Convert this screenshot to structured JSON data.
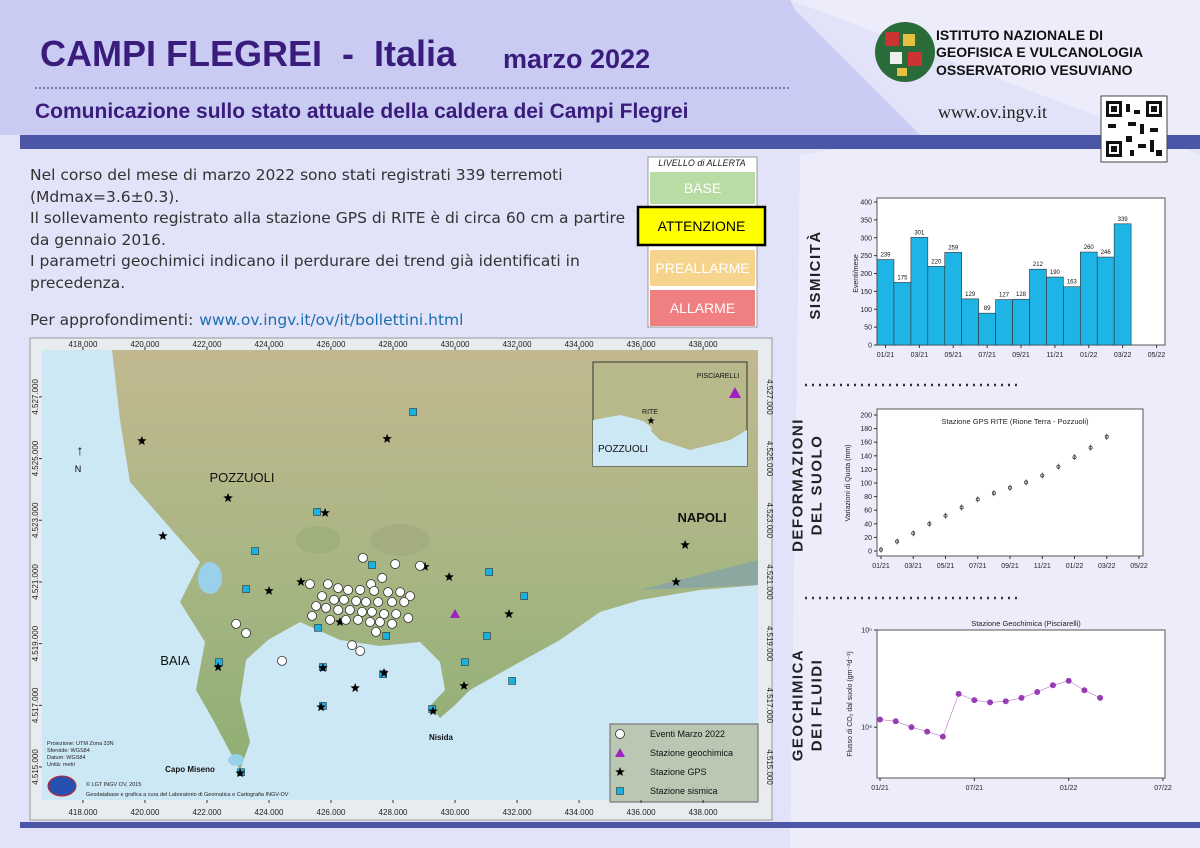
{
  "header": {
    "title": "CAMPI FLEGREI  -  Italia",
    "date": "marzo 2022",
    "subtitle": "Comunicazione sullo stato attuale della caldera dei Campi Flegrei",
    "institute": [
      "ISTITUTO NAZIONALE DI",
      "GEOFISICA E VULCANOLOGIA",
      "OSSERVATORIO VESUVIANO"
    ],
    "website": "www.ov.ingv.it"
  },
  "summary": [
    "Nel corso del mese di marzo 2022 sono stati registrati 339 terremoti (Mdmax=3.6±0.3).",
    "Il sollevamento registrato alla stazione GPS di RITE è di circa 60 cm a partire da gennaio 2016.",
    "I parametri geochimici indicano il perdurare dei trend già identificati in precedenza."
  ],
  "more_info": {
    "label": "Per approfondimenti:",
    "link": "www.ov.ingv.it/ov/it/bollettini.html"
  },
  "alert": {
    "title": "LIVELLO di ALLERTA",
    "current": 1,
    "levels": [
      {
        "label": "BASE",
        "color": "#b9dca4"
      },
      {
        "label": "ATTENZIONE",
        "color": "#ffff00"
      },
      {
        "label": "PREALLARME",
        "color": "#f6d48e"
      },
      {
        "label": "ALLARME",
        "color": "#ef7f80"
      }
    ]
  },
  "map": {
    "xlim": [
      416680,
      439770
    ],
    "ylim": [
      4513930,
      4528520
    ],
    "xticks": [
      {
        "value": 418000,
        "label": "418.000"
      },
      {
        "value": 420000,
        "label": "420.000"
      },
      {
        "value": 422000,
        "label": "422.000"
      },
      {
        "value": 424000,
        "label": "424.000"
      },
      {
        "value": 426000,
        "label": "426.000"
      },
      {
        "value": 428000,
        "label": "428.000"
      },
      {
        "value": 430000,
        "label": "430.000"
      },
      {
        "value": 432000,
        "label": "432.000"
      },
      {
        "value": 434000,
        "label": "434.000"
      },
      {
        "value": 436000,
        "label": "436.000"
      },
      {
        "value": 438000,
        "label": "438.000"
      }
    ],
    "yticks": [
      {
        "value": 4515000,
        "label": "4.515.000"
      },
      {
        "value": 4517000,
        "label": "4.517.000"
      },
      {
        "value": 4519000,
        "label": "4.519.000"
      },
      {
        "value": 4521000,
        "label": "4.521.000"
      },
      {
        "value": 4523000,
        "label": "4.523.000"
      },
      {
        "value": 4525000,
        "label": "4.525.000"
      },
      {
        "value": 4527000,
        "label": "4.527.000"
      }
    ],
    "places": [
      "POZZUOLI",
      "NAPOLI",
      "BAIA",
      "Nisida",
      "Capo Miseno"
    ],
    "north": "N",
    "inset": [
      "PISCIARELLI",
      "RITE",
      "POZZUOLI"
    ],
    "metadata": [
      "Proiezione: UTM Zona 33N",
      "Sferoide: WGS84",
      "Datum: WGS84",
      "Unità: metri"
    ],
    "credits": [
      "© LGT INGV OV, 2015",
      "Geodatabase e grafica a cura del Laboratorio di Geomatica e Cartografia INGV-OV"
    ],
    "series": [
      {
        "name": "Eventi Marzo 2022",
        "marker": "circle",
        "color": "#ffffff",
        "x": [
          427030,
          428070,
          427650,
          427290,
          425900,
          426230,
          426550,
          426940,
          427390,
          427840,
          428230,
          428550,
          425710,
          426100,
          426420,
          426810,
          427130,
          427520,
          427970,
          428360,
          425520,
          425840,
          426230,
          426610,
          427000,
          427320,
          427710,
          428100,
          428490,
          425390,
          425970,
          426480,
          426870,
          427260,
          427580,
          427970,
          427450,
          422940,
          423260,
          424420,
          426680,
          426940,
          428870,
          425320
        ],
        "y": [
          4521780,
          4521580,
          4521130,
          4520930,
          4520930,
          4520800,
          4520740,
          4520740,
          4520710,
          4520670,
          4520670,
          4520540,
          4520540,
          4520420,
          4520420,
          4520380,
          4520350,
          4520350,
          4520350,
          4520350,
          4520220,
          4520160,
          4520090,
          4520090,
          4520030,
          4520030,
          4519960,
          4519960,
          4519830,
          4519900,
          4519770,
          4519770,
          4519770,
          4519700,
          4519700,
          4519640,
          4519380,
          4519640,
          4519340,
          4518440,
          4518950,
          4518760,
          4521520,
          4520930
        ]
      },
      {
        "name": "Stazione geochimica",
        "marker": "triangle",
        "color": "#a020c0",
        "x": [
          430000
        ],
        "y": [
          4519960
        ]
      },
      {
        "name": "Stazione GPS",
        "marker": "star",
        "color": "#000000",
        "x": [
          419900,
          422680,
          420580,
          425810,
          427810,
          424000,
          425030,
          429030,
          429810,
          431740,
          430290,
          437420,
          437130,
          422360,
          425740,
          426780,
          427710,
          425680,
          423070,
          429290,
          426290
        ],
        "y": [
          4525570,
          4523720,
          4522490,
          4523240,
          4525640,
          4520710,
          4521000,
          4521490,
          4521160,
          4519960,
          4517630,
          4522200,
          4521000,
          4518240,
          4518210,
          4517560,
          4518050,
          4516940,
          4514800,
          4516810,
          4519700
        ]
      },
      {
        "name": "Stazione sismica",
        "marker": "square",
        "color": "#1ab0e0",
        "x": [
          428650,
          425550,
          423550,
          423260,
          427320,
          431100,
          432230,
          431030,
          425580,
          427780,
          430320,
          431840,
          422390,
          425740,
          427680,
          425740,
          423100,
          429260
        ],
        "y": [
          4526510,
          4523270,
          4522000,
          4520770,
          4521550,
          4521320,
          4520540,
          4519250,
          4519510,
          4519250,
          4518400,
          4517790,
          4518400,
          4518240,
          4518010,
          4516980,
          4514830,
          4516880
        ]
      }
    ]
  },
  "chart_data": [
    {
      "type": "bar",
      "section": [
        "SISMICITÀ"
      ],
      "y_label": "Eventi/mese",
      "categories": [
        "01/21",
        null,
        "03/21",
        null,
        "05/21",
        null,
        "07/21",
        null,
        "09/21",
        null,
        "11/21",
        null,
        "01/22",
        null,
        "03/22",
        null,
        "05/22"
      ],
      "values": [
        239,
        175,
        301,
        220,
        259,
        129,
        89,
        127,
        128,
        212,
        190,
        163,
        260,
        246,
        339,
        null,
        null
      ],
      "color": "#1fb4e6",
      "ylim": [
        0,
        400
      ],
      "yticks": [
        0,
        50,
        100,
        150,
        200,
        250,
        300,
        350,
        400
      ]
    },
    {
      "type": "line",
      "section": [
        "DEFORMAZIONI",
        "DEL SUOLO"
      ],
      "title": "Stazione GPS RITE (Rione Terra - Pozzuoli)",
      "y_label": "Variazioni di Quota (mm)",
      "categories": [
        "01/21",
        null,
        "03/21",
        null,
        "05/21",
        null,
        "07/21",
        null,
        "09/21",
        null,
        "11/21",
        null,
        "01/22",
        null,
        "03/22",
        null,
        "05/22"
      ],
      "values": [
        2,
        14,
        26,
        40,
        52,
        64,
        76,
        85,
        93,
        101,
        111,
        124,
        138,
        152,
        168,
        null,
        null
      ],
      "color": "#222222",
      "ylim": [
        0,
        200
      ],
      "yticks": [
        0,
        20,
        40,
        60,
        80,
        100,
        120,
        140,
        160,
        180,
        200
      ]
    },
    {
      "type": "scatter",
      "section": [
        "GEOCHIMICA",
        "DEI FLUIDI"
      ],
      "title": "Stazione Geochimica (Pisciarelli)",
      "y_label": "Flusso di CO₂ dal suolo (gm⁻²d⁻¹)",
      "categories": [
        "01/21",
        null,
        null,
        null,
        null,
        null,
        "07/21",
        null,
        null,
        null,
        null,
        null,
        "01/22",
        null,
        null,
        null,
        null,
        null,
        "07/22"
      ],
      "values": [
        12000,
        11500,
        10000,
        9000,
        8000,
        22000,
        19000,
        18000,
        18500,
        20000,
        23000,
        27000,
        30000,
        24000,
        20000,
        null,
        null,
        null,
        null
      ],
      "color": "#8a1fa8",
      "log_scale": true,
      "ylim": [
        3000,
        100000
      ],
      "yticks": [
        {
          "value": 10000,
          "label": "10⁴"
        },
        {
          "value": 100000,
          "label": "10⁵"
        }
      ]
    }
  ]
}
